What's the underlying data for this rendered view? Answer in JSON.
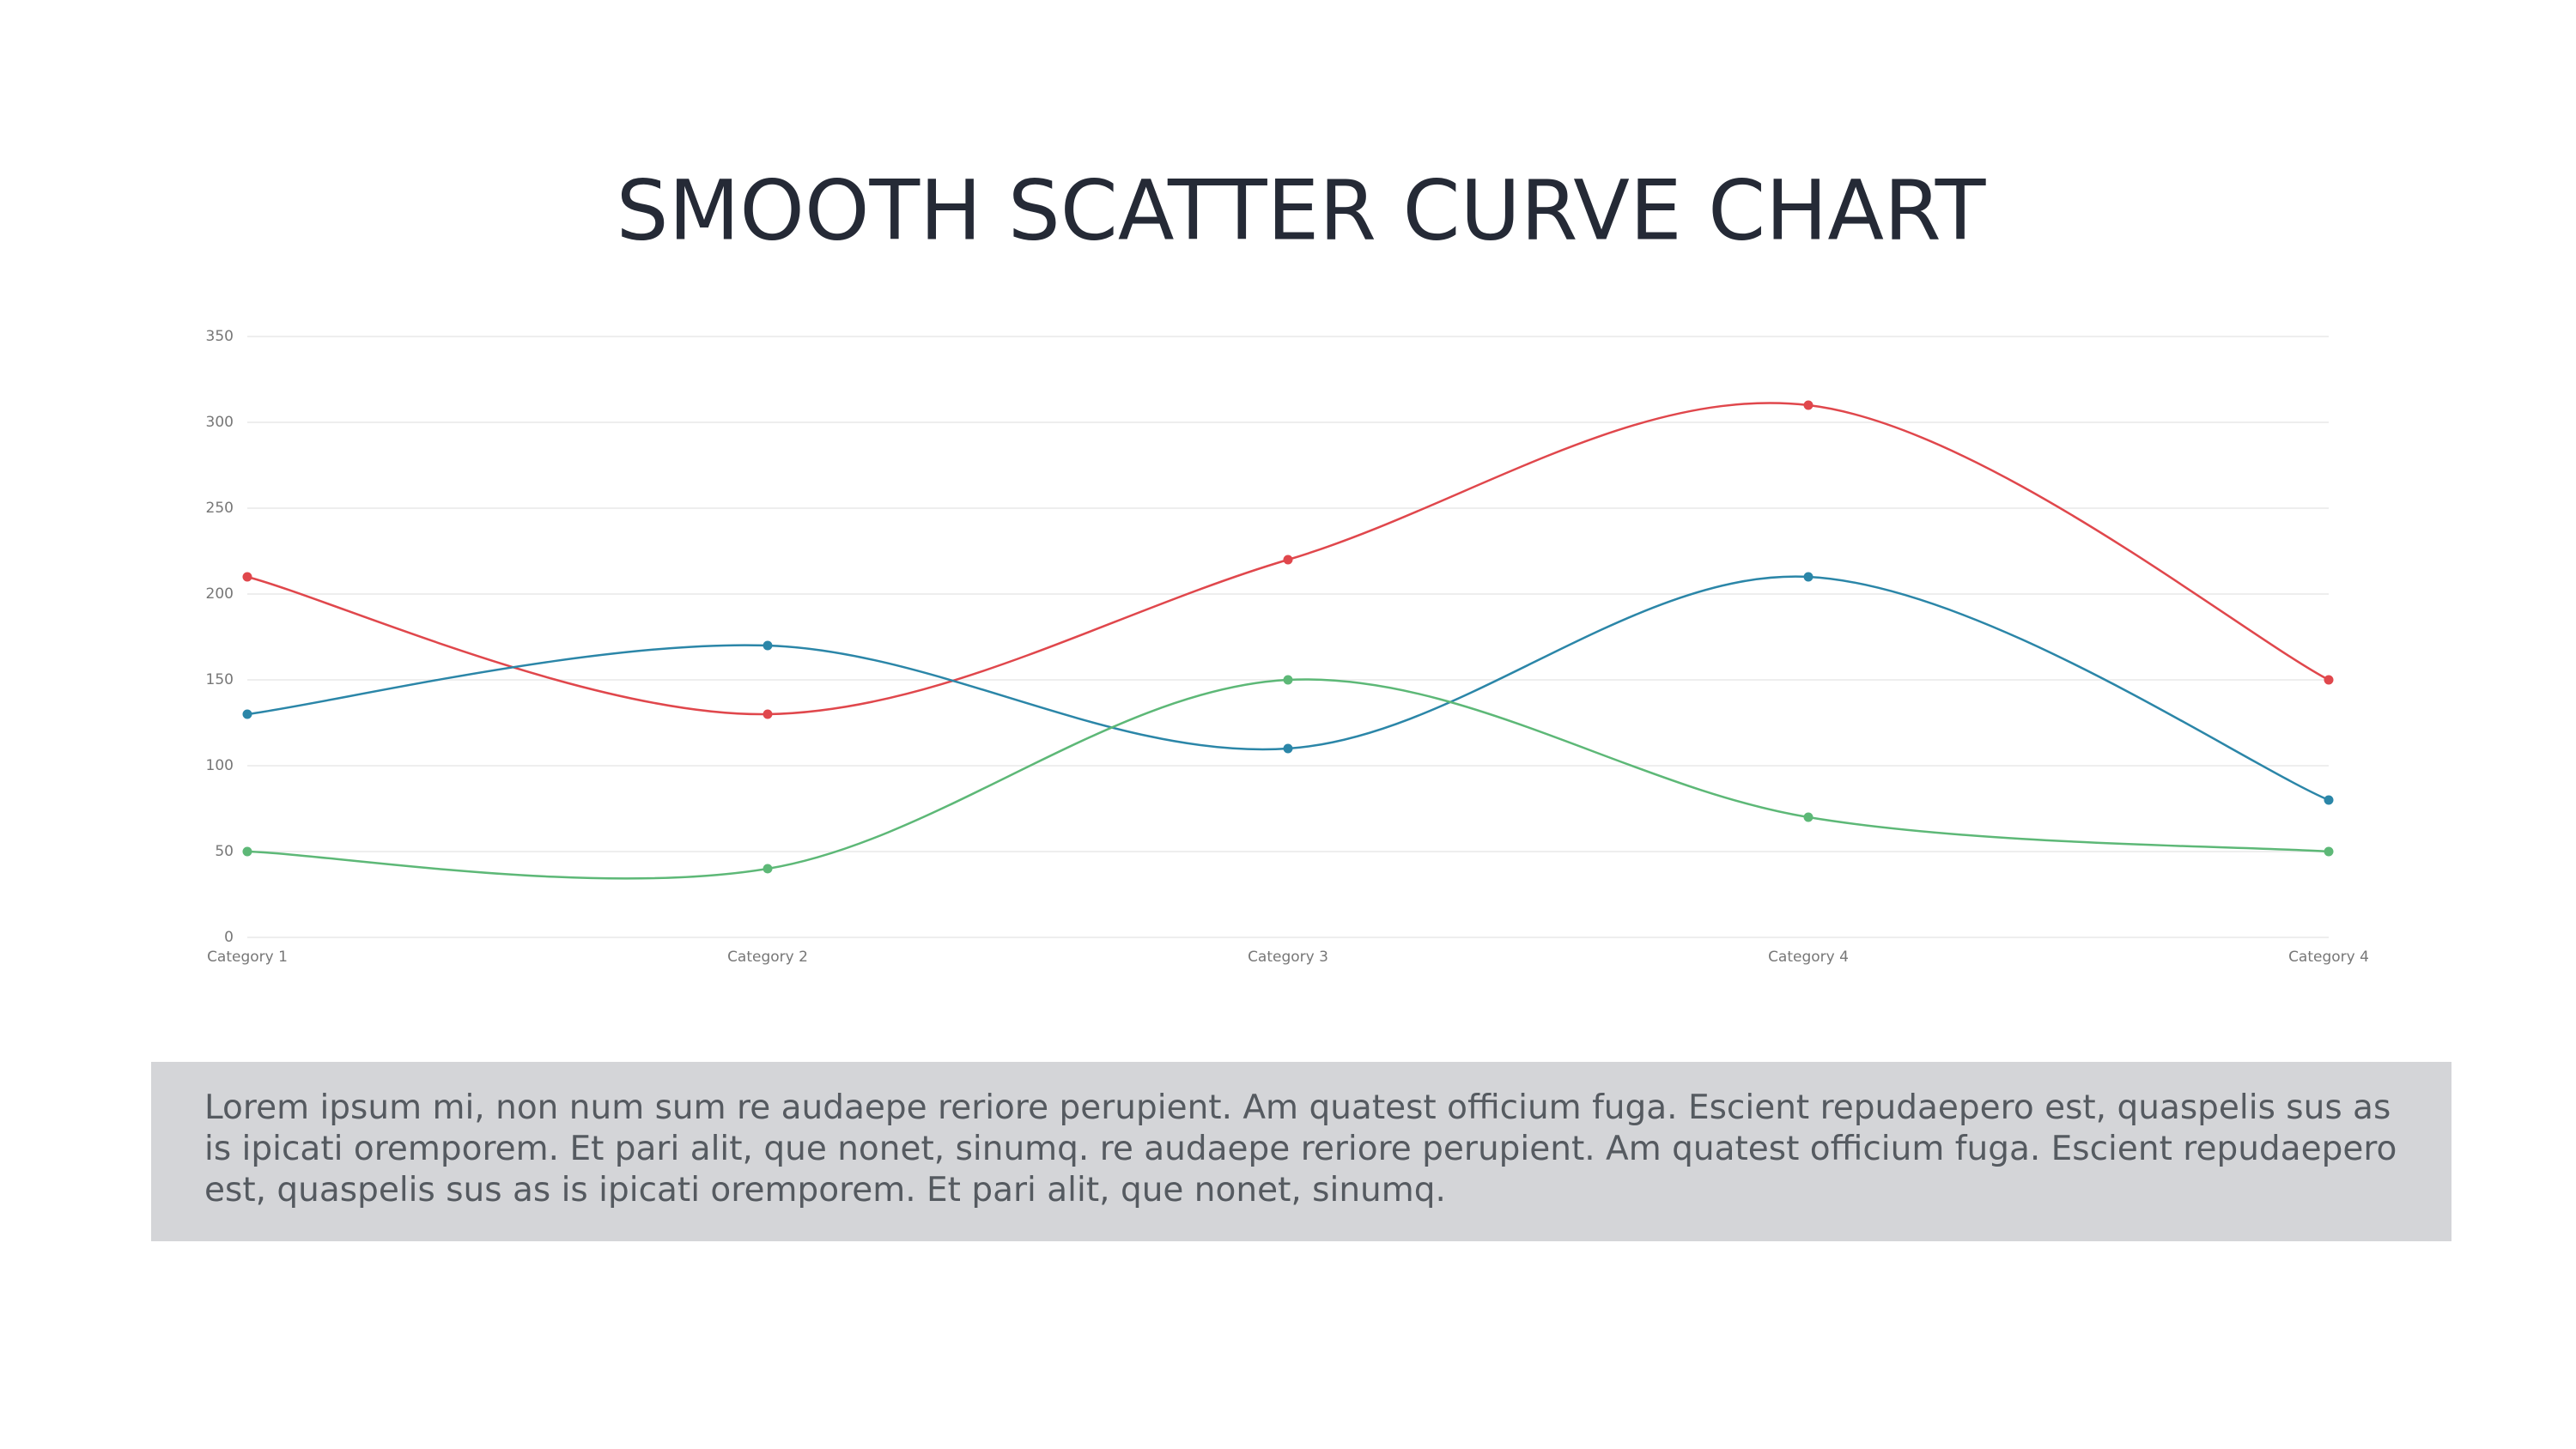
{
  "chart_data": {
    "type": "line",
    "title": "SMOOTH SCATTER CURVE CHART",
    "categories": [
      "Category 1",
      "Category 2",
      "Category 3",
      "Category 4",
      "Category 4"
    ],
    "series": [
      {
        "color": "#e0474c",
        "values": [
          210,
          130,
          220,
          310,
          150
        ]
      },
      {
        "color": "#2b86a8",
        "values": [
          130,
          170,
          110,
          210,
          80
        ]
      },
      {
        "color": "#5db877",
        "values": [
          50,
          40,
          150,
          70,
          50
        ]
      }
    ],
    "ylim": [
      0,
      350
    ],
    "yticks": [
      0,
      50,
      100,
      150,
      200,
      250,
      300,
      350
    ],
    "grid": true,
    "smooth": true
  },
  "text_box": {
    "text": "Lorem ipsum mi, non num sum re audaepe reriore perupient. Am quatest officium fuga. Escient repudaepero est, quaspelis sus as is ipicati oremporem. Et pari alit, que nonet, sinumq. re audaepe reriore perupient. Am quatest officium fuga. Escient repudaepero est, quaspelis sus as is ipicati oremporem. Et pari alit, que nonet, sinumq."
  }
}
